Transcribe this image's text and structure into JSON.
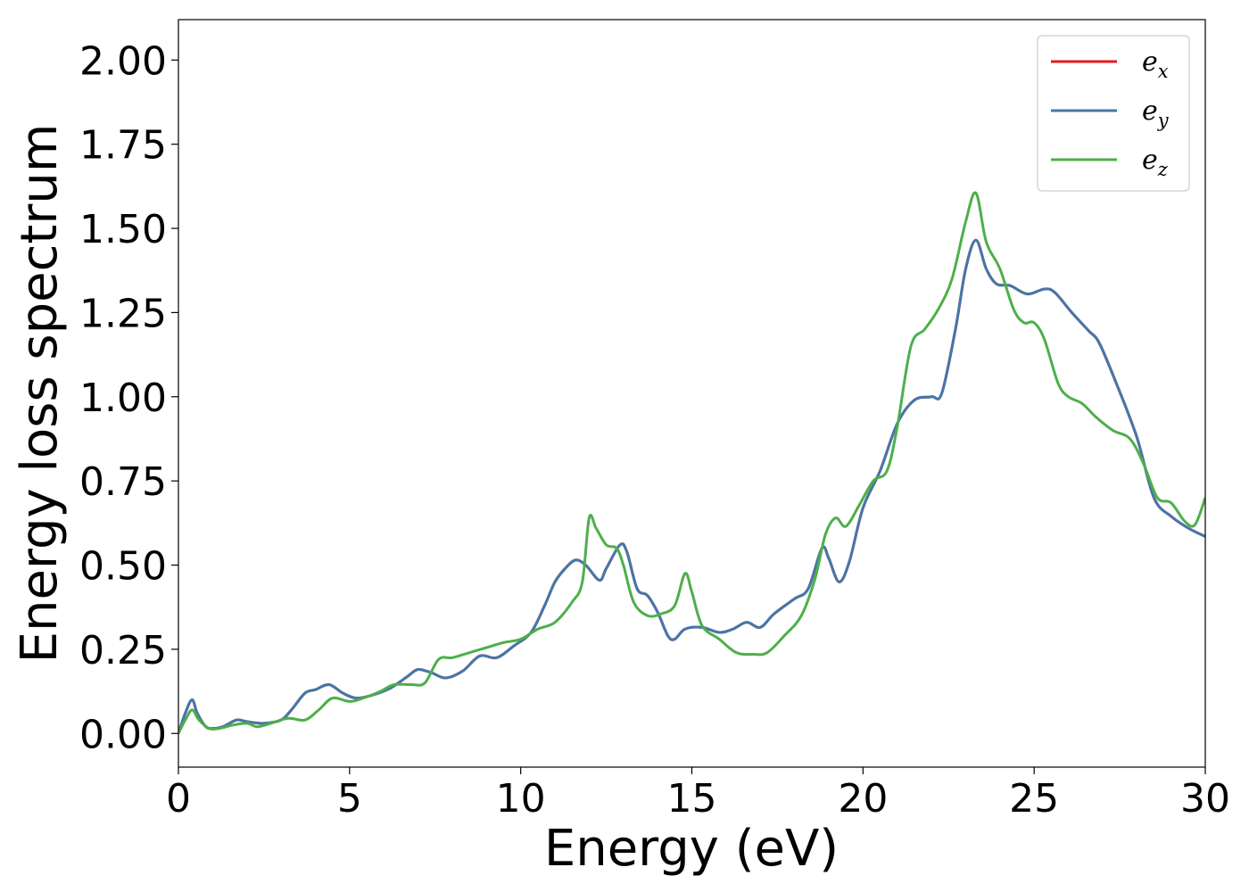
{
  "chart_data": {
    "type": "line",
    "title": "",
    "xlabel": "Energy (eV)",
    "ylabel": "Energy loss spectrum",
    "xlim": [
      0,
      30
    ],
    "ylim": [
      -0.1,
      2.12
    ],
    "xticks": [
      0,
      5,
      10,
      15,
      20,
      25,
      30
    ],
    "yticks": [
      0.0,
      0.25,
      0.5,
      0.75,
      1.0,
      1.25,
      1.5,
      1.75,
      2.0
    ],
    "xtick_labels": [
      "0",
      "5",
      "10",
      "15",
      "20",
      "25",
      "30"
    ],
    "ytick_labels": [
      "0.00",
      "0.25",
      "0.50",
      "0.75",
      "1.00",
      "1.25",
      "1.50",
      "1.75",
      "2.00"
    ],
    "grid": false,
    "legend_position": "top-right",
    "series": [
      {
        "name": "e_x",
        "label_base": "e",
        "label_sub": "x",
        "color": "#e41a1c",
        "points": [
          [
            0,
            0.0
          ],
          [
            0.2,
            0.06
          ],
          [
            0.4,
            0.1
          ],
          [
            0.55,
            0.06
          ],
          [
            0.8,
            0.02
          ],
          [
            1.0,
            0.015
          ],
          [
            1.3,
            0.02
          ],
          [
            1.7,
            0.04
          ],
          [
            2.0,
            0.035
          ],
          [
            2.5,
            0.03
          ],
          [
            3.0,
            0.04
          ],
          [
            3.3,
            0.07
          ],
          [
            3.7,
            0.12
          ],
          [
            4.0,
            0.13
          ],
          [
            4.4,
            0.145
          ],
          [
            4.8,
            0.12
          ],
          [
            5.2,
            0.105
          ],
          [
            5.7,
            0.115
          ],
          [
            6.2,
            0.135
          ],
          [
            6.7,
            0.17
          ],
          [
            7.0,
            0.19
          ],
          [
            7.4,
            0.18
          ],
          [
            7.8,
            0.165
          ],
          [
            8.3,
            0.185
          ],
          [
            8.8,
            0.23
          ],
          [
            9.3,
            0.225
          ],
          [
            9.8,
            0.26
          ],
          [
            10.3,
            0.3
          ],
          [
            10.7,
            0.38
          ],
          [
            11.0,
            0.45
          ],
          [
            11.3,
            0.49
          ],
          [
            11.6,
            0.515
          ],
          [
            11.9,
            0.5
          ],
          [
            12.3,
            0.455
          ],
          [
            12.5,
            0.49
          ],
          [
            12.9,
            0.56
          ],
          [
            13.1,
            0.54
          ],
          [
            13.4,
            0.43
          ],
          [
            13.7,
            0.41
          ],
          [
            14.0,
            0.36
          ],
          [
            14.3,
            0.29
          ],
          [
            14.5,
            0.28
          ],
          [
            14.8,
            0.31
          ],
          [
            15.3,
            0.315
          ],
          [
            15.8,
            0.3
          ],
          [
            16.2,
            0.31
          ],
          [
            16.6,
            0.33
          ],
          [
            17.0,
            0.315
          ],
          [
            17.4,
            0.355
          ],
          [
            18.0,
            0.4
          ],
          [
            18.4,
            0.43
          ],
          [
            18.8,
            0.55
          ],
          [
            19.0,
            0.52
          ],
          [
            19.3,
            0.45
          ],
          [
            19.6,
            0.51
          ],
          [
            20.0,
            0.67
          ],
          [
            20.5,
            0.78
          ],
          [
            21.0,
            0.92
          ],
          [
            21.5,
            0.99
          ],
          [
            22.0,
            1.0
          ],
          [
            22.3,
            1.01
          ],
          [
            22.7,
            1.2
          ],
          [
            23.0,
            1.38
          ],
          [
            23.3,
            1.465
          ],
          [
            23.6,
            1.38
          ],
          [
            23.9,
            1.335
          ],
          [
            24.3,
            1.33
          ],
          [
            24.8,
            1.305
          ],
          [
            25.3,
            1.32
          ],
          [
            25.6,
            1.31
          ],
          [
            26.1,
            1.25
          ],
          [
            26.6,
            1.195
          ],
          [
            26.9,
            1.16
          ],
          [
            27.4,
            1.04
          ],
          [
            28.0,
            0.88
          ],
          [
            28.5,
            0.7
          ],
          [
            29.0,
            0.645
          ],
          [
            29.5,
            0.61
          ],
          [
            30.0,
            0.585
          ]
        ]
      },
      {
        "name": "e_y",
        "label_base": "e",
        "label_sub": "y",
        "color": "#4477aa",
        "points": [
          [
            0,
            0.0
          ],
          [
            0.2,
            0.06
          ],
          [
            0.4,
            0.1
          ],
          [
            0.55,
            0.06
          ],
          [
            0.8,
            0.02
          ],
          [
            1.0,
            0.015
          ],
          [
            1.3,
            0.02
          ],
          [
            1.7,
            0.04
          ],
          [
            2.0,
            0.035
          ],
          [
            2.5,
            0.03
          ],
          [
            3.0,
            0.04
          ],
          [
            3.3,
            0.07
          ],
          [
            3.7,
            0.12
          ],
          [
            4.0,
            0.13
          ],
          [
            4.4,
            0.145
          ],
          [
            4.8,
            0.12
          ],
          [
            5.2,
            0.105
          ],
          [
            5.7,
            0.115
          ],
          [
            6.2,
            0.135
          ],
          [
            6.7,
            0.17
          ],
          [
            7.0,
            0.19
          ],
          [
            7.4,
            0.18
          ],
          [
            7.8,
            0.165
          ],
          [
            8.3,
            0.185
          ],
          [
            8.8,
            0.23
          ],
          [
            9.3,
            0.225
          ],
          [
            9.8,
            0.26
          ],
          [
            10.3,
            0.3
          ],
          [
            10.7,
            0.38
          ],
          [
            11.0,
            0.45
          ],
          [
            11.3,
            0.49
          ],
          [
            11.6,
            0.515
          ],
          [
            11.9,
            0.5
          ],
          [
            12.3,
            0.455
          ],
          [
            12.5,
            0.49
          ],
          [
            12.9,
            0.56
          ],
          [
            13.1,
            0.54
          ],
          [
            13.4,
            0.43
          ],
          [
            13.7,
            0.41
          ],
          [
            14.0,
            0.36
          ],
          [
            14.3,
            0.29
          ],
          [
            14.5,
            0.28
          ],
          [
            14.8,
            0.31
          ],
          [
            15.3,
            0.315
          ],
          [
            15.8,
            0.3
          ],
          [
            16.2,
            0.31
          ],
          [
            16.6,
            0.33
          ],
          [
            17.0,
            0.315
          ],
          [
            17.4,
            0.355
          ],
          [
            18.0,
            0.4
          ],
          [
            18.4,
            0.43
          ],
          [
            18.8,
            0.55
          ],
          [
            19.0,
            0.52
          ],
          [
            19.3,
            0.45
          ],
          [
            19.6,
            0.51
          ],
          [
            20.0,
            0.67
          ],
          [
            20.5,
            0.78
          ],
          [
            21.0,
            0.92
          ],
          [
            21.5,
            0.99
          ],
          [
            22.0,
            1.0
          ],
          [
            22.3,
            1.01
          ],
          [
            22.7,
            1.2
          ],
          [
            23.0,
            1.38
          ],
          [
            23.3,
            1.465
          ],
          [
            23.6,
            1.38
          ],
          [
            23.9,
            1.335
          ],
          [
            24.3,
            1.33
          ],
          [
            24.8,
            1.305
          ],
          [
            25.3,
            1.32
          ],
          [
            25.6,
            1.31
          ],
          [
            26.1,
            1.25
          ],
          [
            26.6,
            1.195
          ],
          [
            26.9,
            1.16
          ],
          [
            27.4,
            1.04
          ],
          [
            28.0,
            0.88
          ],
          [
            28.5,
            0.7
          ],
          [
            29.0,
            0.645
          ],
          [
            29.5,
            0.61
          ],
          [
            30.0,
            0.585
          ]
        ]
      },
      {
        "name": "e_z",
        "label_base": "e",
        "label_sub": "z",
        "color": "#4daf4a",
        "points": [
          [
            0,
            0.0
          ],
          [
            0.2,
            0.04
          ],
          [
            0.4,
            0.07
          ],
          [
            0.6,
            0.04
          ],
          [
            0.9,
            0.015
          ],
          [
            1.2,
            0.015
          ],
          [
            1.6,
            0.025
          ],
          [
            2.0,
            0.03
          ],
          [
            2.3,
            0.02
          ],
          [
            2.7,
            0.03
          ],
          [
            3.2,
            0.045
          ],
          [
            3.7,
            0.04
          ],
          [
            4.1,
            0.07
          ],
          [
            4.5,
            0.105
          ],
          [
            5.0,
            0.095
          ],
          [
            5.4,
            0.105
          ],
          [
            5.9,
            0.125
          ],
          [
            6.3,
            0.145
          ],
          [
            6.8,
            0.145
          ],
          [
            7.2,
            0.15
          ],
          [
            7.6,
            0.22
          ],
          [
            8.0,
            0.225
          ],
          [
            8.5,
            0.24
          ],
          [
            9.0,
            0.255
          ],
          [
            9.5,
            0.27
          ],
          [
            10.0,
            0.28
          ],
          [
            10.5,
            0.31
          ],
          [
            11.0,
            0.33
          ],
          [
            11.5,
            0.39
          ],
          [
            11.8,
            0.45
          ],
          [
            12.0,
            0.64
          ],
          [
            12.2,
            0.61
          ],
          [
            12.5,
            0.56
          ],
          [
            12.8,
            0.55
          ],
          [
            13.0,
            0.5
          ],
          [
            13.3,
            0.39
          ],
          [
            13.7,
            0.35
          ],
          [
            14.1,
            0.355
          ],
          [
            14.5,
            0.38
          ],
          [
            14.8,
            0.475
          ],
          [
            15.0,
            0.42
          ],
          [
            15.3,
            0.32
          ],
          [
            15.8,
            0.28
          ],
          [
            16.3,
            0.24
          ],
          [
            16.8,
            0.235
          ],
          [
            17.2,
            0.24
          ],
          [
            17.7,
            0.29
          ],
          [
            18.2,
            0.35
          ],
          [
            18.6,
            0.46
          ],
          [
            18.9,
            0.59
          ],
          [
            19.2,
            0.64
          ],
          [
            19.5,
            0.615
          ],
          [
            19.9,
            0.68
          ],
          [
            20.3,
            0.75
          ],
          [
            20.7,
            0.78
          ],
          [
            21.0,
            0.91
          ],
          [
            21.4,
            1.15
          ],
          [
            21.8,
            1.2
          ],
          [
            22.2,
            1.26
          ],
          [
            22.6,
            1.35
          ],
          [
            23.0,
            1.52
          ],
          [
            23.3,
            1.605
          ],
          [
            23.6,
            1.46
          ],
          [
            24.0,
            1.38
          ],
          [
            24.4,
            1.26
          ],
          [
            24.7,
            1.22
          ],
          [
            25.0,
            1.22
          ],
          [
            25.3,
            1.17
          ],
          [
            25.7,
            1.04
          ],
          [
            26.0,
            1.0
          ],
          [
            26.4,
            0.98
          ],
          [
            26.8,
            0.94
          ],
          [
            27.3,
            0.9
          ],
          [
            27.8,
            0.875
          ],
          [
            28.2,
            0.8
          ],
          [
            28.6,
            0.7
          ],
          [
            29.0,
            0.685
          ],
          [
            29.4,
            0.63
          ],
          [
            29.7,
            0.62
          ],
          [
            30.0,
            0.7
          ]
        ]
      }
    ]
  }
}
